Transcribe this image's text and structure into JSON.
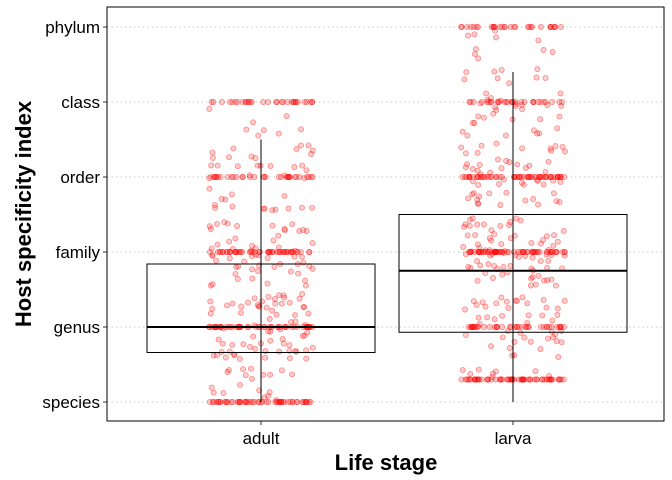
{
  "chart_data": {
    "type": "boxplot",
    "title": "",
    "xlabel": "Life stage",
    "ylabel": "Host specificity index",
    "categories": [
      "adult",
      "larva"
    ],
    "y_levels": [
      "species",
      "genus",
      "family",
      "order",
      "class",
      "phylum"
    ],
    "y_level_values": [
      1,
      2,
      3,
      4,
      5,
      6
    ],
    "ylim": [
      0.8,
      6.2
    ],
    "grid": "horizontal dotted",
    "legend": "none",
    "point_color": "#ff0000",
    "point_alpha": 0.2,
    "boxes": [
      {
        "category": "adult",
        "whisker_low": 1.0,
        "q1": 1.66,
        "median": 2.0,
        "q3": 2.84,
        "whisker_high": 4.5,
        "jitter_min": 1.0,
        "jitter_max": 5.0
      },
      {
        "category": "larva",
        "whisker_low": 1.0,
        "q1": 1.93,
        "median": 2.75,
        "q3": 3.5,
        "whisker_high": 5.4,
        "jitter_min": 1.3,
        "jitter_max": 6.0
      }
    ]
  }
}
